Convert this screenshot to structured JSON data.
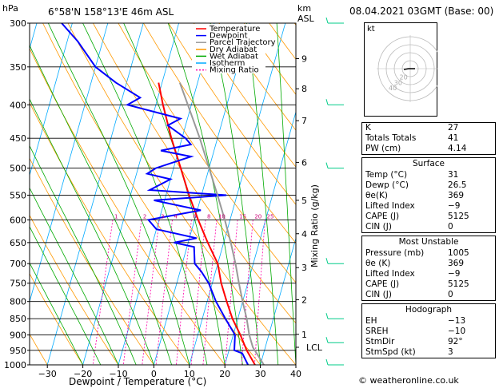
{
  "header": {
    "pressure_unit": "hPa",
    "location": "6°58'N 158°13'E 46m ASL",
    "km_unit": "km",
    "asl": "ASL",
    "date": "08.04.2021 03GMT (Base: 00)"
  },
  "legend": [
    {
      "label": "Temperature",
      "color": "#ff0000"
    },
    {
      "label": "Dewpoint",
      "color": "#0000ff"
    },
    {
      "label": "Parcel Trajectory",
      "color": "#999999"
    },
    {
      "label": "Dry Adiabat",
      "color": "#ff9900"
    },
    {
      "label": "Wet Adiabat",
      "color": "#00aa00"
    },
    {
      "label": "Isotherm",
      "color": "#00aaff"
    },
    {
      "label": "Mixing Ratio",
      "color": "#ff00aa"
    }
  ],
  "chart_data": {
    "type": "line",
    "xlabel": "Dewpoint / Temperature (°C)",
    "ylabel_right": "Mixing Ratio (g/kg)",
    "x_ticks": [
      -30,
      -20,
      -10,
      0,
      10,
      20,
      30,
      40
    ],
    "xlim": [
      -35,
      40
    ],
    "pressure_ticks": [
      300,
      350,
      400,
      450,
      500,
      550,
      600,
      650,
      700,
      750,
      800,
      850,
      900,
      950,
      1000
    ],
    "plim": [
      300,
      1000
    ],
    "km_ticks": [
      {
        "label": "9",
        "p": 340
      },
      {
        "label": "8",
        "p": 378
      },
      {
        "label": "7",
        "p": 423
      },
      {
        "label": "6",
        "p": 490
      },
      {
        "label": "5",
        "p": 560
      },
      {
        "label": "4",
        "p": 630
      },
      {
        "label": "3",
        "p": 710
      },
      {
        "label": "2",
        "p": 795
      },
      {
        "label": "1",
        "p": 898
      }
    ],
    "lcl": {
      "label": "LCL",
      "p": 940
    },
    "mixing_ratio_labels": [
      "1",
      "2",
      "3",
      "4",
      "6",
      "8",
      "10",
      "15",
      "20",
      "25"
    ],
    "series": [
      {
        "name": "Temperature",
        "p": [
          1000,
          950,
          900,
          850,
          800,
          750,
          700,
          650,
          600,
          550,
          500,
          450,
          400,
          370
        ],
        "t": [
          28.5,
          25,
          22,
          18.5,
          15.5,
          12.5,
          10,
          5.5,
          1,
          -3.5,
          -8,
          -13,
          -18,
          -21
        ]
      },
      {
        "name": "Dewpoint",
        "p": [
          1000,
          960,
          950,
          900,
          850,
          800,
          750,
          720,
          700,
          660,
          650,
          640,
          620,
          600,
          580,
          560,
          550,
          540,
          520,
          510,
          500,
          480,
          470,
          460,
          450,
          430,
          420,
          400,
          390,
          370,
          350,
          320,
          300
        ],
        "t": [
          26.5,
          24,
          21.5,
          20.5,
          16.5,
          12.5,
          9,
          6,
          3.5,
          2,
          -4,
          2,
          -10,
          -13,
          1,
          -13,
          7,
          -15,
          -10,
          -17,
          -15,
          -6,
          -15,
          -7,
          -9,
          -15,
          -12,
          -28,
          -25,
          -33,
          -40,
          -47,
          -53
        ]
      },
      {
        "name": "Parcel Trajectory",
        "p": [
          1000,
          940,
          900,
          850,
          800,
          750,
          700,
          650,
          600,
          550,
          500,
          450,
          400,
          370
        ],
        "t": [
          31,
          26.5,
          24.5,
          22.5,
          20,
          17.5,
          15,
          12,
          8.5,
          4.5,
          0,
          -5,
          -11,
          -15
        ]
      }
    ],
    "wind_barbs": [
      {
        "p": 300
      },
      {
        "p": 400
      },
      {
        "p": 500
      },
      {
        "p": 700
      },
      {
        "p": 850
      },
      {
        "p": 925
      },
      {
        "p": 1000
      }
    ]
  },
  "hodograph": {
    "unit": "kt",
    "rings": [
      "20",
      "30",
      "40"
    ]
  },
  "indices": [
    {
      "k": "K",
      "v": "27"
    },
    {
      "k": "Totals Totals",
      "v": "41"
    },
    {
      "k": "PW (cm)",
      "v": "4.14"
    }
  ],
  "surface": {
    "title": "Surface",
    "rows": [
      {
        "k": "Temp (°C)",
        "v": "31"
      },
      {
        "k": "Dewp (°C)",
        "v": "26.5"
      },
      {
        "k": "θe(K)",
        "v": "369"
      },
      {
        "k": "Lifted Index",
        "v": "-9"
      },
      {
        "k": "CAPE (J)",
        "v": "5125"
      },
      {
        "k": "CIN (J)",
        "v": "0"
      }
    ]
  },
  "most_unstable": {
    "title": "Most Unstable",
    "rows": [
      {
        "k": "Pressure (mb)",
        "v": "1005"
      },
      {
        "k": "θe (K)",
        "v": "369"
      },
      {
        "k": "Lifted Index",
        "v": "-9"
      },
      {
        "k": "CAPE (J)",
        "v": "5125"
      },
      {
        "k": "CIN (J)",
        "v": "0"
      }
    ]
  },
  "hodograph_box": {
    "title": "Hodograph",
    "rows": [
      {
        "k": "EH",
        "v": "-13"
      },
      {
        "k": "SREH",
        "v": "-10"
      },
      {
        "k": "StmDir",
        "v": "92°"
      },
      {
        "k": "StmSpd (kt)",
        "v": "3"
      }
    ]
  },
  "footer": "© weatheronline.co.uk"
}
